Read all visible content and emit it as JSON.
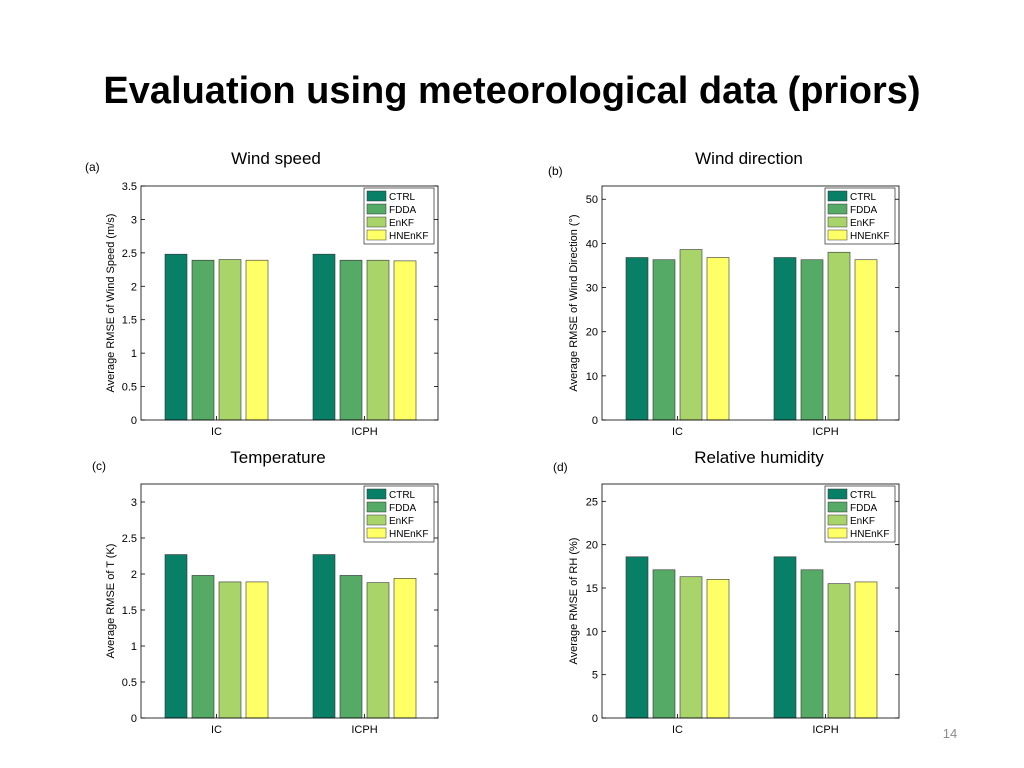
{
  "slide": {
    "title": "Evaluation using meteorological data (priors)",
    "page_number": "14"
  },
  "colors": {
    "CTRL": "#087f67",
    "FDDA": "#55aa66",
    "EnKF": "#a8d46a",
    "HNEnKF": "#ffff66"
  },
  "chart_data": [
    {
      "type": "bar",
      "panel_label": "(a)",
      "title": "Wind speed",
      "ylabel": "Average RMSE of Wind Speed (m/s)",
      "categories": [
        "IC",
        "ICPH"
      ],
      "ylim": [
        0,
        3.5
      ],
      "yticks": [
        0,
        0.5,
        1,
        1.5,
        2,
        2.5,
        3,
        3.5
      ],
      "ytick_labels": [
        "0",
        "0.5",
        "1",
        "1.5",
        "2",
        "2.5",
        "3",
        "3.5"
      ],
      "legend_position": "top-right",
      "series": [
        {
          "name": "CTRL",
          "values": [
            2.48,
            2.48
          ]
        },
        {
          "name": "FDDA",
          "values": [
            2.39,
            2.39
          ]
        },
        {
          "name": "EnKF",
          "values": [
            2.4,
            2.39
          ]
        },
        {
          "name": "HNEnKF",
          "values": [
            2.39,
            2.38
          ]
        }
      ]
    },
    {
      "type": "bar",
      "panel_label": "(b)",
      "title": "Wind direction",
      "ylabel": "Average RMSE of Wind Direction (°)",
      "categories": [
        "IC",
        "ICPH"
      ],
      "ylim": [
        0,
        53
      ],
      "yticks": [
        0,
        10,
        20,
        30,
        40,
        50
      ],
      "ytick_labels": [
        "0",
        "10",
        "20",
        "30",
        "40",
        "50"
      ],
      "legend_position": "top-right",
      "series": [
        {
          "name": "CTRL",
          "values": [
            36.8,
            36.8
          ]
        },
        {
          "name": "FDDA",
          "values": [
            36.3,
            36.3
          ]
        },
        {
          "name": "EnKF",
          "values": [
            38.6,
            38.0
          ]
        },
        {
          "name": "HNEnKF",
          "values": [
            36.8,
            36.3
          ]
        }
      ]
    },
    {
      "type": "bar",
      "panel_label": "(c)",
      "title": "Temperature",
      "ylabel": "Average RMSE of T (K)",
      "categories": [
        "IC",
        "ICPH"
      ],
      "ylim": [
        0,
        3.25
      ],
      "yticks": [
        0,
        0.5,
        1,
        1.5,
        2,
        2.5,
        3
      ],
      "ytick_labels": [
        "0",
        "0.5",
        "1",
        "1.5",
        "2",
        "2.5",
        "3"
      ],
      "legend_position": "top-right",
      "series": [
        {
          "name": "CTRL",
          "values": [
            2.27,
            2.27
          ]
        },
        {
          "name": "FDDA",
          "values": [
            1.98,
            1.98
          ]
        },
        {
          "name": "EnKF",
          "values": [
            1.89,
            1.88
          ]
        },
        {
          "name": "HNEnKF",
          "values": [
            1.89,
            1.94
          ]
        }
      ]
    },
    {
      "type": "bar",
      "panel_label": "(d)",
      "title": "Relative humidity",
      "ylabel": "Average RMSE of RH (%)",
      "categories": [
        "IC",
        "ICPH"
      ],
      "ylim": [
        0,
        27
      ],
      "yticks": [
        0,
        5,
        10,
        15,
        20,
        25
      ],
      "ytick_labels": [
        "0",
        "5",
        "10",
        "15",
        "20",
        "25"
      ],
      "legend_position": "top-right",
      "series": [
        {
          "name": "CTRL",
          "values": [
            18.6,
            18.6
          ]
        },
        {
          "name": "FDDA",
          "values": [
            17.1,
            17.1
          ]
        },
        {
          "name": "EnKF",
          "values": [
            16.3,
            15.5
          ]
        },
        {
          "name": "HNEnKF",
          "values": [
            16.0,
            15.7
          ]
        }
      ]
    }
  ]
}
